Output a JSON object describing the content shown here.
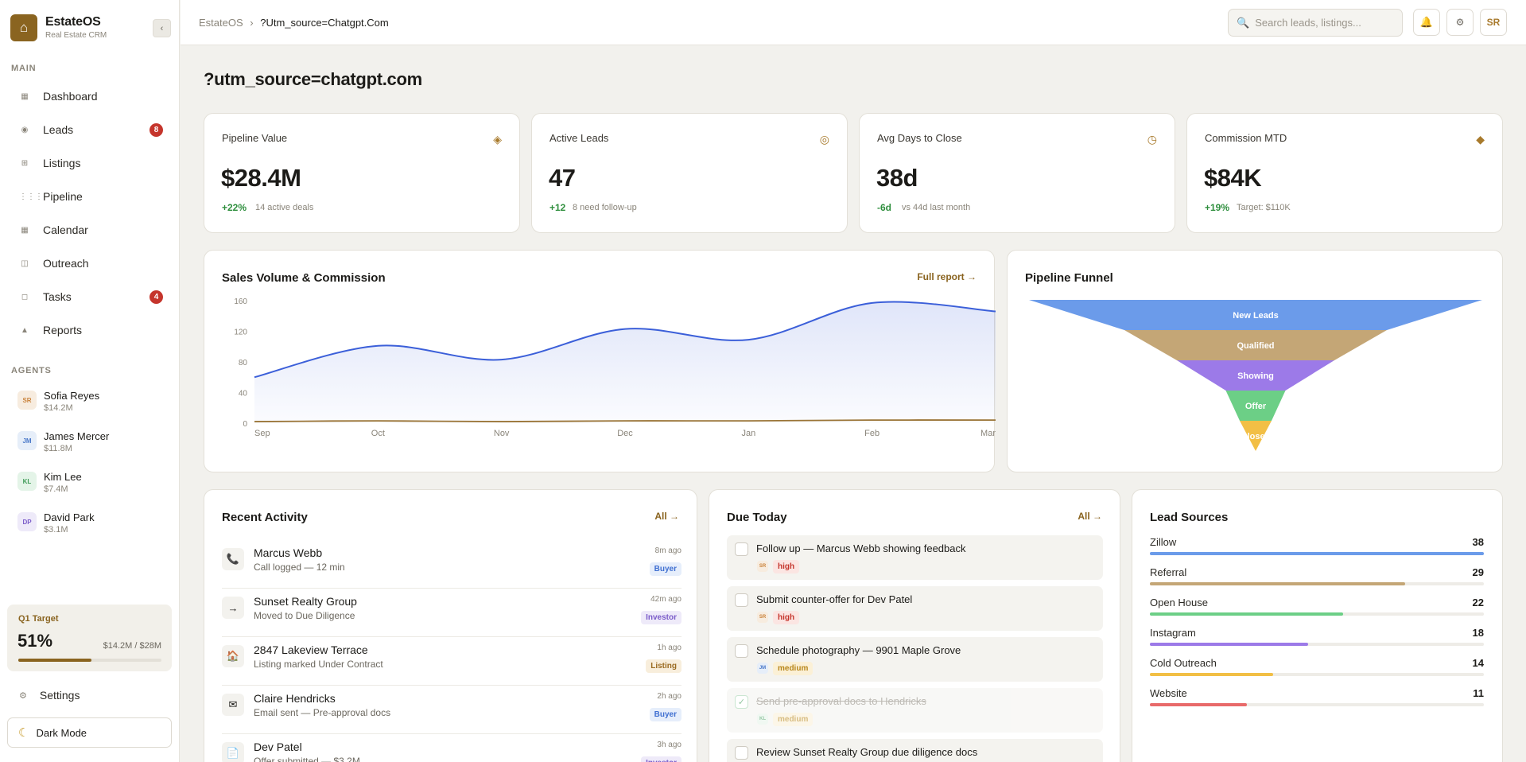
{
  "app": {
    "name": "EstateOS",
    "subtitle": "Real Estate CRM",
    "logo_icon": "home-icon",
    "collapse_glyph": "‹"
  },
  "sidebar": {
    "main_label": "MAIN",
    "nav": [
      {
        "label": "Dashboard",
        "icon": "grid-icon",
        "glyph": "▦"
      },
      {
        "label": "Leads",
        "icon": "leads-icon",
        "glyph": "◉",
        "badge": "8"
      },
      {
        "label": "Listings",
        "icon": "listings-icon",
        "glyph": "⊞"
      },
      {
        "label": "Pipeline",
        "icon": "pipeline-icon",
        "glyph": "⋮⋮⋮"
      },
      {
        "label": "Calendar",
        "icon": "calendar-icon",
        "glyph": "▦"
      },
      {
        "label": "Outreach",
        "icon": "outreach-icon",
        "glyph": "◫"
      },
      {
        "label": "Tasks",
        "icon": "tasks-icon",
        "glyph": "◻",
        "badge": "4"
      },
      {
        "label": "Reports",
        "icon": "reports-icon",
        "glyph": "▲"
      }
    ],
    "agents_label": "AGENTS",
    "agents": [
      {
        "initials": "SR",
        "name": "Sofia Reyes",
        "value": "$14.2M",
        "color": "#c9823a",
        "bg": "#f7ecdf"
      },
      {
        "initials": "JM",
        "name": "James Mercer",
        "value": "$11.8M",
        "color": "#4a78c9",
        "bg": "#e6eef9"
      },
      {
        "initials": "KL",
        "name": "Kim Lee",
        "value": "$7.4M",
        "color": "#3f9b57",
        "bg": "#e4f4e8"
      },
      {
        "initials": "DP",
        "name": "David Park",
        "value": "$3.1M",
        "color": "#7a5bc9",
        "bg": "#eeeaf9"
      }
    ],
    "q1": {
      "label": "Q1 Target",
      "percent": "51%",
      "amount": "$14.2M / $28M",
      "progress": 0.51
    },
    "settings_label": "Settings",
    "dark_mode_label": "Dark Mode"
  },
  "topbar": {
    "breadcrumb_root": "EstateOS",
    "breadcrumb_sep": "›",
    "breadcrumb_current": "?Utm_source=Chatgpt.Com",
    "search_placeholder": "Search leads, listings...",
    "user_initials": "SR"
  },
  "page": {
    "title": "?utm_source=chatgpt.com"
  },
  "kpis": [
    {
      "label": "Pipeline Value",
      "icon": "diamond-icon",
      "glyph": "◈",
      "value": "$28.4M",
      "delta": "+22%",
      "sub": "14 active deals",
      "delta_color": "#2f8f3e"
    },
    {
      "label": "Active Leads",
      "icon": "target-icon",
      "glyph": "◎",
      "value": "47",
      "delta": "+12",
      "sub": "8 need follow-up",
      "delta_color": "#2f8f3e"
    },
    {
      "label": "Avg Days to Close",
      "icon": "clock-icon",
      "glyph": "◷",
      "value": "38d",
      "delta": "-6d",
      "sub": "vs 44d last month",
      "delta_color": "#2f8f3e"
    },
    {
      "label": "Commission MTD",
      "icon": "diamond-small-icon",
      "glyph": "◆",
      "value": "$84K",
      "delta": "+19%",
      "sub": "Target: $110K",
      "delta_color": "#2f8f3e"
    }
  ],
  "sales_chart": {
    "title": "Sales Volume & Commission",
    "link": "Full report →"
  },
  "chart_data": [
    {
      "type": "area",
      "categories": [
        "Sep",
        "Oct",
        "Nov",
        "Dec",
        "Jan",
        "Feb",
        "Mar"
      ],
      "series": [
        {
          "values": [
            60,
            101,
            83,
            123,
            109,
            157,
            146
          ],
          "color": "#3b5fd9"
        },
        {
          "values": [
            2,
            3,
            2,
            3,
            3,
            4,
            4
          ],
          "color": "#9a7436"
        }
      ],
      "yticks": [
        0,
        40,
        80,
        120,
        160
      ],
      "ylim": [
        0,
        160
      ],
      "grid": false
    },
    {
      "type": "funnel",
      "title": "Pipeline Funnel",
      "stages": [
        {
          "label": "New Leads",
          "color": "#6b9bea"
        },
        {
          "label": "Qualified",
          "color": "#c4a676"
        },
        {
          "label": "Showing",
          "color": "#9c7ae8"
        },
        {
          "label": "Offer",
          "color": "#6ccf86"
        },
        {
          "label": "Closed",
          "color": "#f2bf45"
        }
      ]
    }
  ],
  "funnel": {
    "title": "Pipeline Funnel"
  },
  "activity": {
    "title": "Recent Activity",
    "link": "All →",
    "items": [
      {
        "icon": "phone-icon",
        "glyph": "📞",
        "name": "Marcus Webb",
        "desc": "Call logged — 12 min",
        "time": "8m ago",
        "tag": "Buyer",
        "tag_color": "#3f6fd1",
        "tag_bg": "#e6eefb"
      },
      {
        "icon": "arrow-right-icon",
        "glyph": "→",
        "name": "Sunset Realty Group",
        "desc": "Moved to Due Diligence",
        "time": "42m ago",
        "tag": "Investor",
        "tag_color": "#7a5bc9",
        "tag_bg": "#eeeaf9"
      },
      {
        "icon": "house-icon",
        "glyph": "🏠",
        "name": "2847 Lakeview Terrace",
        "desc": "Listing marked Under Contract",
        "time": "1h ago",
        "tag": "Listing",
        "tag_color": "#9a6a20",
        "tag_bg": "#f8eedc"
      },
      {
        "icon": "mail-icon",
        "glyph": "✉",
        "name": "Claire Hendricks",
        "desc": "Email sent — Pre-approval docs",
        "time": "2h ago",
        "tag": "Buyer",
        "tag_color": "#3f6fd1",
        "tag_bg": "#e6eefb"
      },
      {
        "icon": "document-icon",
        "glyph": "📄",
        "name": "Dev Patel",
        "desc": "Offer submitted — $3.2M",
        "time": "3h ago",
        "tag": "Investor",
        "tag_color": "#7a5bc9",
        "tag_bg": "#eeeaf9"
      }
    ]
  },
  "due": {
    "title": "Due Today",
    "link": "All →",
    "items": [
      {
        "text": "Follow up — Marcus Webb showing feedback",
        "initials": "SR",
        "av_color": "#c9823a",
        "av_bg": "#f7ecdf",
        "priority": "high",
        "p_color": "#c5352c",
        "p_bg": "#fbe5e2",
        "done": false
      },
      {
        "text": "Submit counter-offer for Dev Patel",
        "initials": "SR",
        "av_color": "#c9823a",
        "av_bg": "#f7ecdf",
        "priority": "high",
        "p_color": "#c5352c",
        "p_bg": "#fbe5e2",
        "done": false
      },
      {
        "text": "Schedule photography — 9901 Maple Grove",
        "initials": "JM",
        "av_color": "#4a78c9",
        "av_bg": "#e6eef9",
        "priority": "medium",
        "p_color": "#b8861a",
        "p_bg": "#fbf0d6",
        "done": false
      },
      {
        "text": "Send pre-approval docs to Hendricks",
        "initials": "KL",
        "av_color": "#3f9b57",
        "av_bg": "#e4f4e8",
        "priority": "medium",
        "p_color": "#b8861a",
        "p_bg": "#fbf0d6",
        "done": true
      },
      {
        "text": "Review Sunset Realty Group due diligence docs",
        "initials": "",
        "av_color": "",
        "av_bg": "",
        "priority": "",
        "p_color": "",
        "p_bg": "",
        "done": false
      }
    ]
  },
  "sources": {
    "title": "Lead Sources",
    "items": [
      {
        "name": "Zillow",
        "value": 38,
        "color": "#6b9bea"
      },
      {
        "name": "Referral",
        "value": 29,
        "color": "#c4a676"
      },
      {
        "name": "Open House",
        "value": 22,
        "color": "#6ccf86"
      },
      {
        "name": "Instagram",
        "value": 18,
        "color": "#9c7ae8"
      },
      {
        "name": "Cold Outreach",
        "value": 14,
        "color": "#f2bf45"
      },
      {
        "name": "Website",
        "value": 11,
        "color": "#e86a6a"
      }
    ],
    "max": 38
  }
}
